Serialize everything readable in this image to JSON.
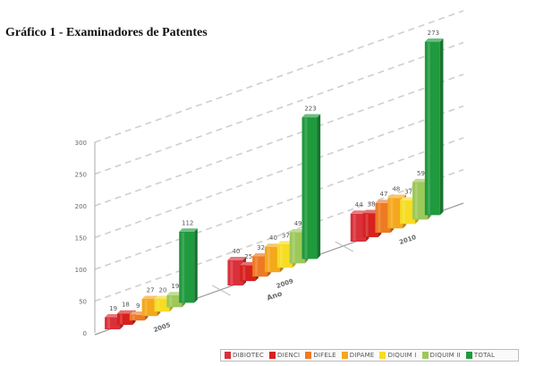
{
  "title": "Gráfico 1 - Examinadores de Patentes",
  "chart_data": {
    "type": "bar",
    "xlabel": "Ano",
    "ylabel": "",
    "ylim": [
      0,
      300
    ],
    "yticks": [
      0,
      50,
      100,
      150,
      200,
      250,
      300
    ],
    "grid": true,
    "three_d": true,
    "legend_position": "bottom-right",
    "categories": [
      "2005",
      "2009",
      "2010"
    ],
    "series": [
      {
        "name": "DIBIOTEC",
        "color": "#d9303a",
        "values": [
          19,
          40,
          44
        ]
      },
      {
        "name": "DIENCI",
        "color": "#d6211f",
        "values": [
          18,
          25,
          38
        ]
      },
      {
        "name": "DIFELE",
        "color": "#ee7a22",
        "values": [
          9,
          32,
          47
        ]
      },
      {
        "name": "DIPAME",
        "color": "#f4a81c",
        "values": [
          27,
          40,
          48
        ]
      },
      {
        "name": "DIQUIM I",
        "color": "#f7dc22",
        "values": [
          20,
          37,
          37
        ]
      },
      {
        "name": "DIQUIM II",
        "color": "#9dc85a",
        "values": [
          19,
          49,
          59
        ]
      },
      {
        "name": "TOTAL",
        "color": "#1f9a3d",
        "values": [
          112,
          223,
          273
        ]
      }
    ]
  }
}
